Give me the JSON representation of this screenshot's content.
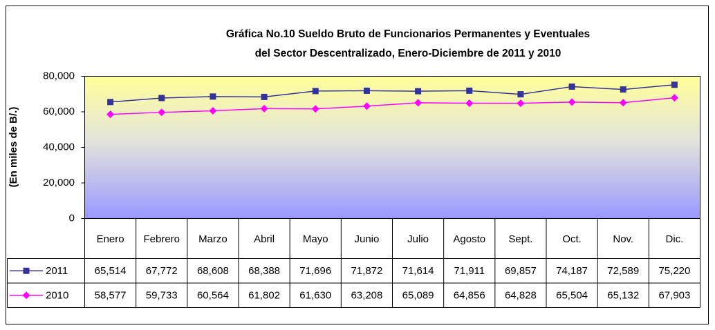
{
  "chart_data": {
    "type": "line",
    "title": [
      "Gráfica No.10 Sueldo Bruto de Funcionarios Permanentes y Eventuales",
      "del Sector Descentralizado, Enero-Diciembre de 2011 y 2010"
    ],
    "y_label": "(En miles de B/.)",
    "categories": [
      "Enero",
      "Febrero",
      "Marzo",
      "Abril",
      "Mayo",
      "Junio",
      "Julio",
      "Agosto",
      "Sept.",
      "Oct.",
      "Nov.",
      "Dic."
    ],
    "series": [
      {
        "name": "2011",
        "color": "#333399",
        "marker": "square",
        "values": [
          65514,
          67772,
          68608,
          68388,
          71696,
          71872,
          71614,
          71911,
          69857,
          74187,
          72589,
          75220
        ],
        "value_labels": [
          "65,514",
          "67,772",
          "68,608",
          "68,388",
          "71,696",
          "71,872",
          "71,614",
          "71,911",
          "69,857",
          "74,187",
          "72,589",
          "75,220"
        ]
      },
      {
        "name": "2010",
        "color": "#ff00ff",
        "marker": "diamond",
        "values": [
          58577,
          59733,
          60564,
          61802,
          61630,
          63208,
          65089,
          64856,
          64828,
          65504,
          65132,
          67903
        ],
        "value_labels": [
          "58,577",
          "59,733",
          "60,564",
          "61,802",
          "61,630",
          "63,208",
          "65,089",
          "64,856",
          "64,828",
          "65,504",
          "65,132",
          "67,903"
        ]
      }
    ],
    "ylim": [
      0,
      80000
    ],
    "yticks": [
      0,
      {
        "value": 20000,
        "label": "20,000"
      },
      {
        "value": 40000,
        "label": "40,000"
      },
      {
        "value": 60000,
        "label": "60,000"
      },
      {
        "value": 80000,
        "label": "80,000"
      }
    ],
    "grid": false,
    "data_table": true
  }
}
